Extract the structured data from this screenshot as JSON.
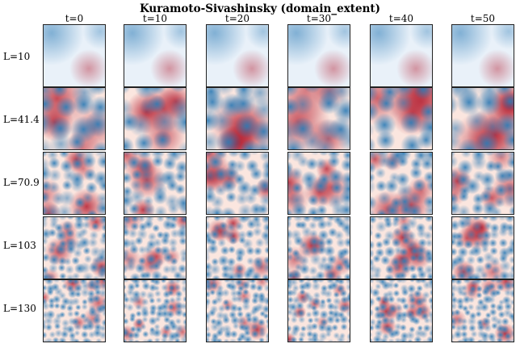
{
  "title": "Kuramoto-Sivashinsky (domain_extent)",
  "columns": [
    "t=0",
    "t=10",
    "t=20",
    "t=30",
    "t=40",
    "t=50"
  ],
  "rows": [
    "L=10",
    "L=41.4",
    "L=70.9",
    "L=103",
    "L=130"
  ],
  "colors": {
    "low": "#2c7bb6",
    "mid": "#f7f7f7",
    "high": "#b2182b"
  }
}
